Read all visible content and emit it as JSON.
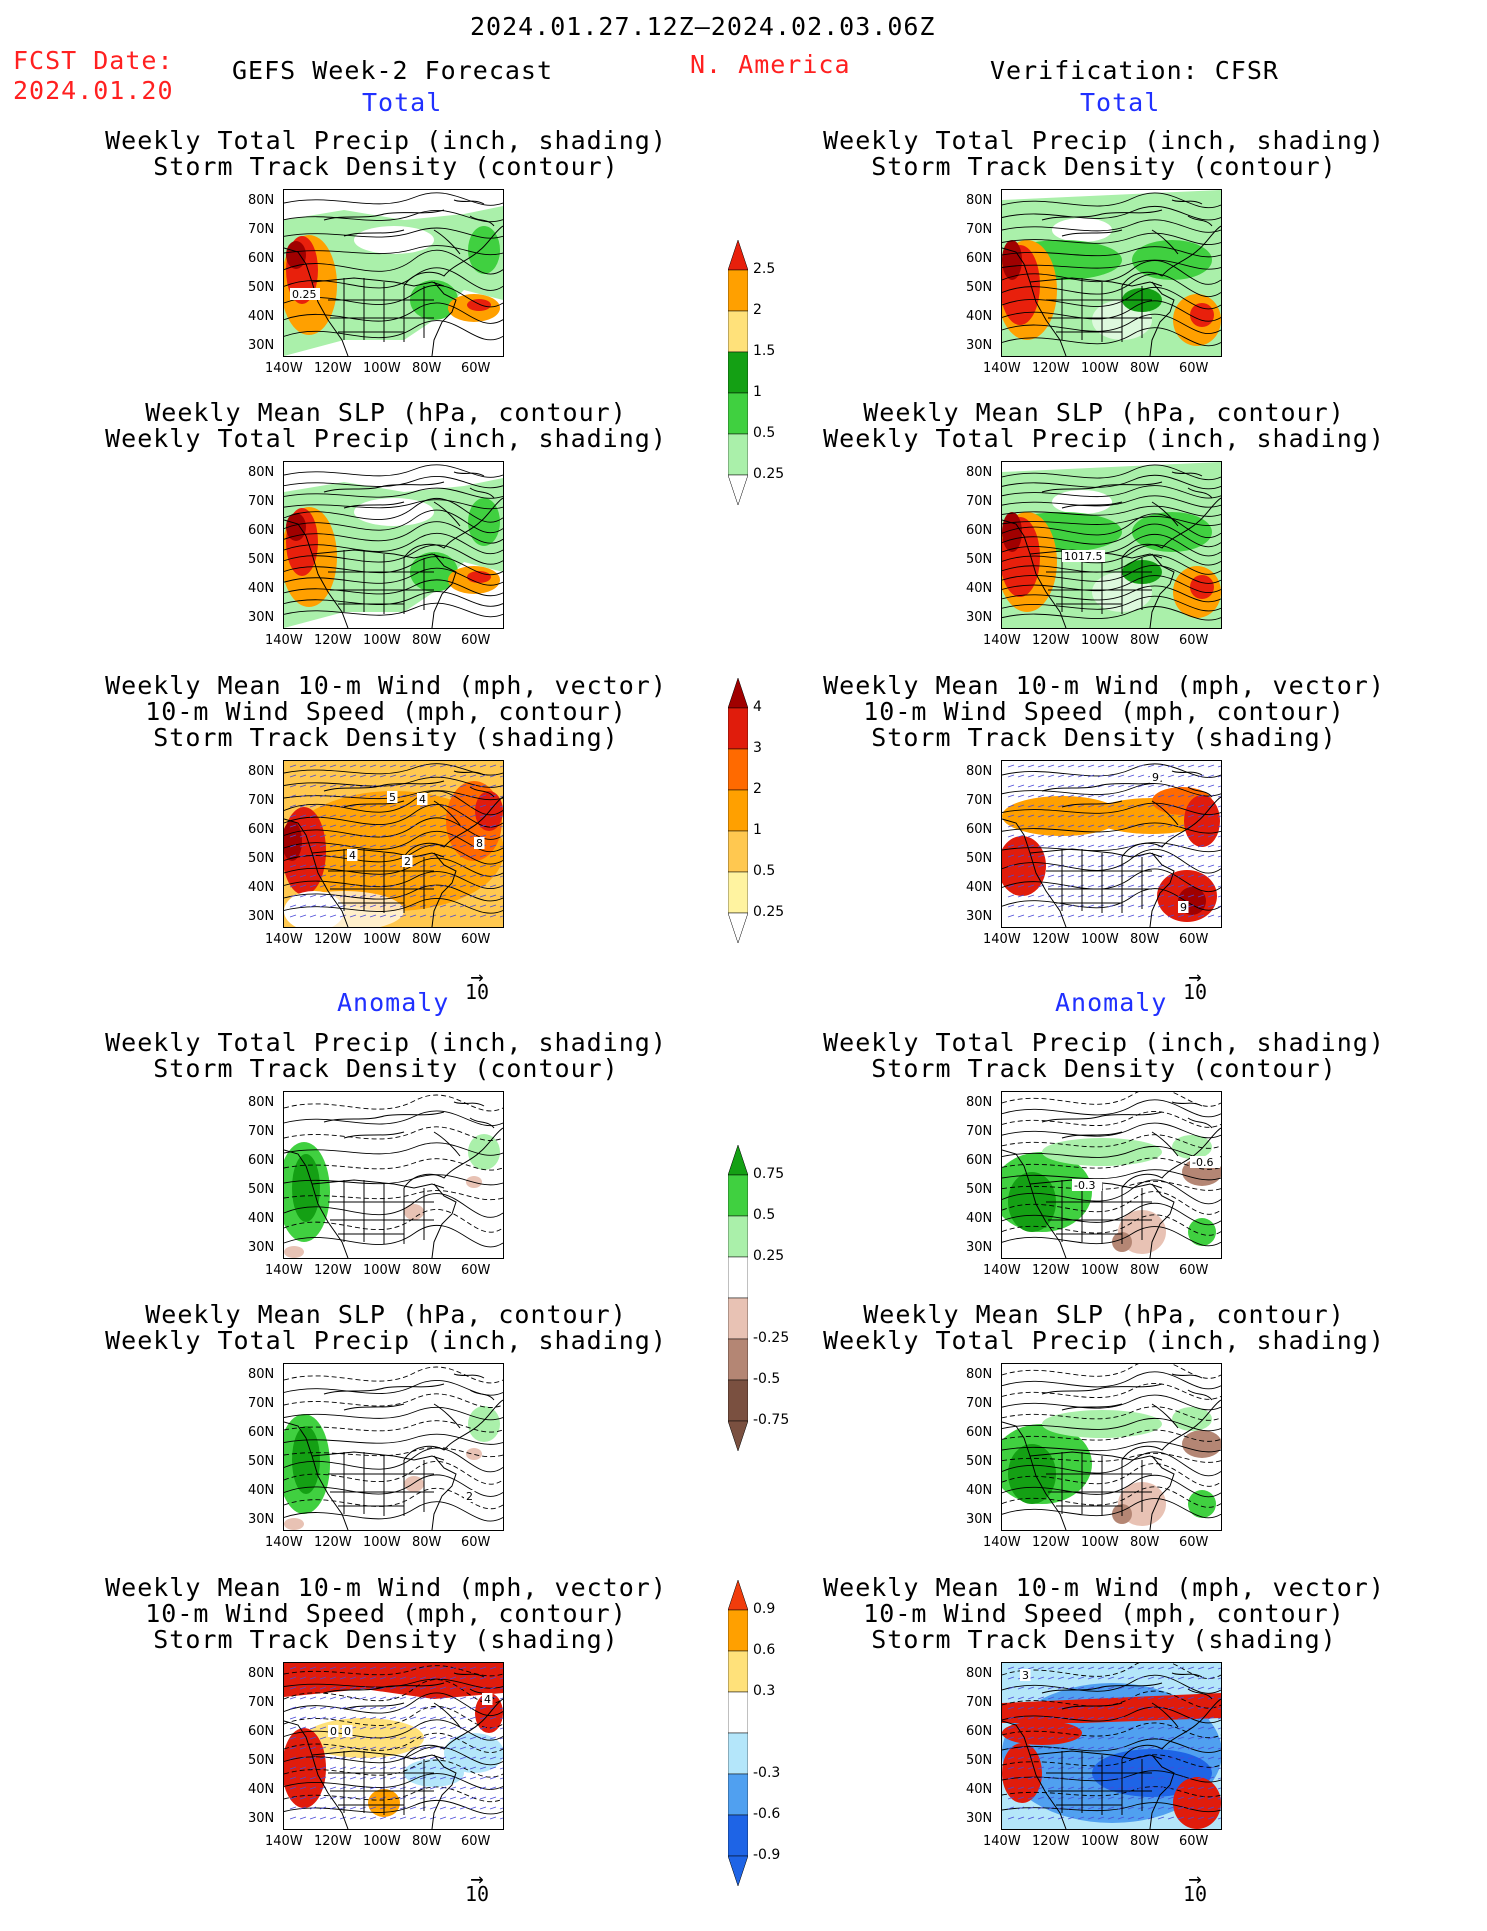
{
  "header": {
    "date_range": "2024.01.27.12Z–2024.02.03.06Z",
    "fcst_label": "FCST Date:",
    "fcst_date": "2024.01.20",
    "left_title": "GEFS Week-2 Forecast",
    "region": "N. America",
    "right_title": "Verification: CFSR"
  },
  "sections": {
    "total": "Total",
    "anomaly": "Anomaly"
  },
  "panel_titles": {
    "precip_track": [
      "Weekly Total Precip (inch, shading)",
      "Storm Track Density (contour)"
    ],
    "slp_precip": [
      "Weekly Mean SLP (hPa, contour)",
      "Weekly Total Precip (inch, shading)"
    ],
    "wind_track": [
      "Weekly Mean 10-m Wind (mph, vector)",
      "10-m Wind Speed (mph, contour)",
      "Storm Track Density (shading)"
    ]
  },
  "axes": {
    "lat_ticks": [
      "80N",
      "70N",
      "60N",
      "50N",
      "40N",
      "30N"
    ],
    "lon_ticks": [
      "140W",
      "120W",
      "100W",
      "80W",
      "60W"
    ]
  },
  "vector_scale": "10",
  "map_labels": {
    "p1_contour": "0.25",
    "p5_contour": "1017.5",
    "p3_a": "5",
    "p3_b": "4",
    "p3_c": "4",
    "p3_d": "2",
    "p3_e": "8",
    "p6_a": "9",
    "p6_b": "9",
    "p8_a": "-0.6",
    "p8_b": "-0.3",
    "p9_a": "2",
    "p11_a": "4",
    "p11_b": "0",
    "p11_c": "0",
    "p12_a": "3"
  },
  "colorbars": {
    "precip_total": {
      "labels": [
        "2.5",
        "2",
        "1.5",
        "1",
        "0.5",
        "0.25"
      ],
      "colors": [
        "#e8200c",
        "#ffa000",
        "#ffe17a",
        "#14a014",
        "#40d040",
        "#aaf0aa"
      ]
    },
    "track_total": {
      "labels": [
        "4",
        "3",
        "2",
        "1",
        "0.5",
        "0.25"
      ],
      "colors": [
        "#a00000",
        "#e01c0c",
        "#ff6a00",
        "#ffa000",
        "#ffc850",
        "#fff3a0"
      ]
    },
    "precip_anom": {
      "labels": [
        "0.75",
        "0.5",
        "0.25",
        "-0.25",
        "-0.5",
        "-0.75"
      ],
      "colors": [
        "#14a014",
        "#40d040",
        "#aaf0aa",
        "#ffffff",
        "#e8c2b4",
        "#b48674",
        "#7a5040"
      ]
    },
    "track_anom": {
      "labels": [
        "0.9",
        "0.6",
        "0.3",
        "-0.3",
        "-0.6",
        "-0.9"
      ],
      "colors": [
        "#f03c0c",
        "#ffa000",
        "#ffe17a",
        "#ffffff",
        "#b4e6fa",
        "#50a0f0",
        "#1e64e6"
      ]
    }
  }
}
